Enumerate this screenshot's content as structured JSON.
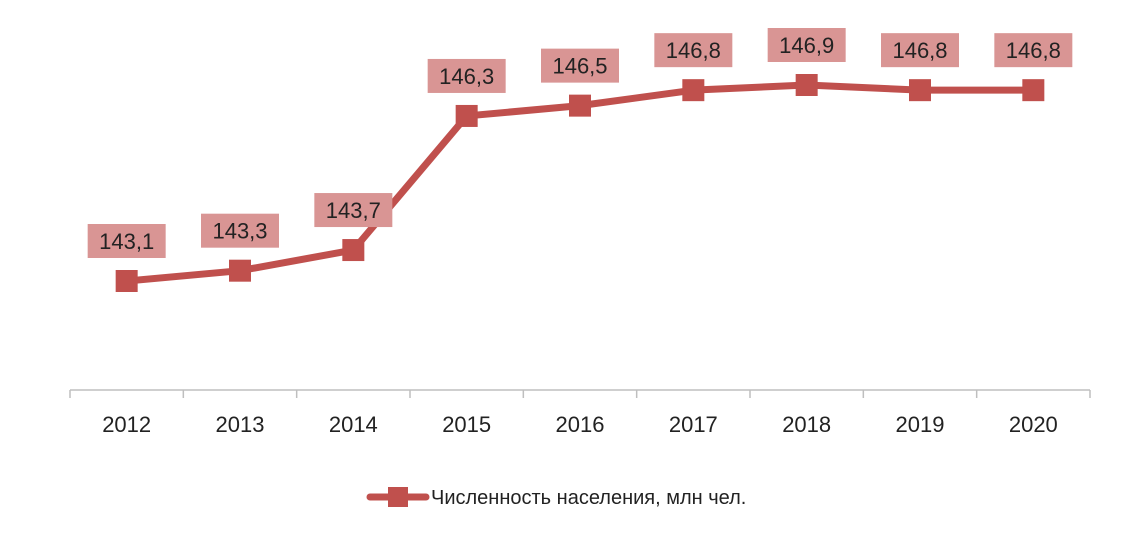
{
  "chart_data": {
    "type": "line",
    "categories": [
      "2012",
      "2013",
      "2014",
      "2015",
      "2016",
      "2017",
      "2018",
      "2019",
      "2020"
    ],
    "series": [
      {
        "name": "Численность населения, млн чел.",
        "values": [
          143.1,
          143.3,
          143.7,
          146.3,
          146.5,
          146.8,
          146.9,
          146.8,
          146.8
        ],
        "labels": [
          "143,1",
          "143,3",
          "143,7",
          "146,3",
          "146,5",
          "146,8",
          "146,9",
          "146,8",
          "146,8"
        ]
      }
    ],
    "legend": "bottom",
    "grid": false,
    "colors": {
      "line": "#c0504d",
      "label_box": "#d99594",
      "axis": "#bfbfbf"
    }
  }
}
